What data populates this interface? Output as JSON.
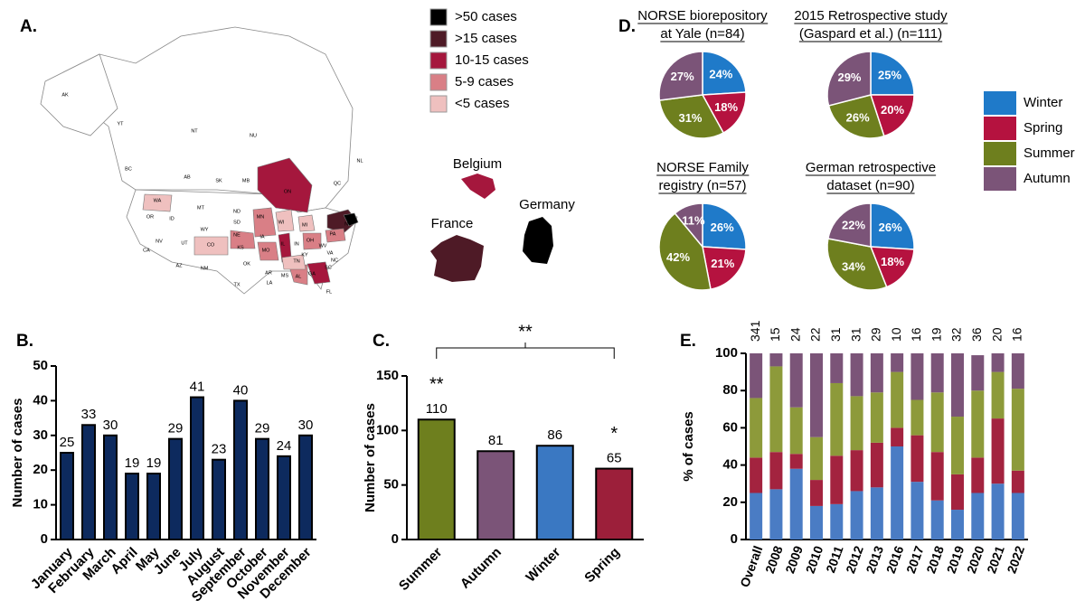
{
  "panel_labels": [
    "A.",
    "B.",
    "C.",
    "D.",
    "E."
  ],
  "chart_data": [
    {
      "type": "map",
      "legend": [
        {
          "label": ">50 cases",
          "color": "#000000"
        },
        {
          "label": ">15 cases",
          "color": "#4e1a26"
        },
        {
          "label": "10-15 cases",
          "color": "#a5173d"
        },
        {
          "label": "5-9 cases",
          "color": "#d97f86"
        },
        {
          "label": "<5 cases",
          "color": "#efc0bf"
        }
      ],
      "countries": [
        "Belgium",
        "France",
        "Germany"
      ],
      "region_labels": [
        "AK",
        "YT",
        "NT",
        "NU",
        "BC",
        "AB",
        "SK",
        "MB",
        "ON",
        "QC",
        "NL",
        "WA",
        "OR",
        "ID",
        "MT",
        "WY",
        "ND",
        "SD",
        "NE",
        "MN",
        "WI",
        "MI",
        "IA",
        "IL",
        "IN",
        "OH",
        "KS",
        "MO",
        "CA",
        "NV",
        "UT",
        "CO",
        "AZ",
        "NM",
        "TX",
        "OK",
        "AR",
        "LA",
        "MS",
        "AL",
        "GA",
        "TN",
        "KY",
        "WV",
        "VA",
        "NC",
        "SC",
        "FL",
        "PA",
        "NY"
      ]
    },
    {
      "type": "bar",
      "ylabel": "Number of cases",
      "categories": [
        "January",
        "February",
        "March",
        "April",
        "May",
        "June",
        "July",
        "August",
        "September",
        "October",
        "November",
        "December"
      ],
      "values": [
        25,
        33,
        30,
        19,
        19,
        29,
        41,
        23,
        40,
        29,
        24,
        30
      ],
      "color": "#0d2a5e",
      "ylim": [
        0,
        50
      ],
      "yticks": [
        0,
        10,
        20,
        30,
        40,
        50
      ]
    },
    {
      "type": "bar",
      "ylabel": "Number of cases",
      "categories": [
        "Summer",
        "Autumn",
        "Winter",
        "Spring"
      ],
      "values": [
        110,
        81,
        86,
        65
      ],
      "colors": [
        "#6e7f1e",
        "#7b5478",
        "#3a78c2",
        "#9c1f3a"
      ],
      "significance": [
        "**",
        null,
        null,
        "*"
      ],
      "bracket_label": "**",
      "ylim": [
        0,
        150
      ],
      "yticks": [
        0,
        50,
        100,
        150
      ]
    },
    {
      "type": "pie",
      "labels": [
        "Winter",
        "Spring",
        "Summer",
        "Autumn"
      ],
      "colors": [
        "#1f7ac9",
        "#b5123f",
        "#6e7f1e",
        "#7b5478"
      ],
      "pies": [
        {
          "title": [
            "NORSE biorepository",
            "at Yale (n=84)"
          ],
          "values": [
            24,
            18,
            31,
            27
          ],
          "value_labels": [
            "24%",
            "18%",
            "31%",
            "27%"
          ]
        },
        {
          "title": [
            "2015 Retrospective study",
            "(Gaspard et al.) (n=111)"
          ],
          "values": [
            25,
            20,
            26,
            29
          ],
          "value_labels": [
            "25%",
            "20%",
            "26%",
            "29%"
          ]
        },
        {
          "title": [
            "NORSE Family",
            "registry (n=57)"
          ],
          "values": [
            26,
            21,
            42,
            11
          ],
          "value_labels": [
            "26%",
            "21%",
            "42%",
            "11%"
          ]
        },
        {
          "title": [
            "German retrospective",
            "dataset (n=90)"
          ],
          "values": [
            26,
            18,
            34,
            22
          ],
          "value_labels": [
            "26%",
            "18%",
            "34%",
            "22%"
          ]
        }
      ]
    },
    {
      "type": "stacked_bar",
      "ylabel": "% of cases",
      "categories": [
        "Overall",
        "2008",
        "2009",
        "2010",
        "2011",
        "2012",
        "2013",
        "2016",
        "2017",
        "2018",
        "2019",
        "2020",
        "2021",
        "2022"
      ],
      "n_labels": [
        341,
        15,
        24,
        22,
        31,
        31,
        29,
        10,
        16,
        19,
        32,
        36,
        20,
        16
      ],
      "series": [
        {
          "name": "Winter",
          "color": "#4a7cc4",
          "values": [
            25,
            27,
            38,
            18,
            19,
            26,
            28,
            50,
            31,
            21,
            16,
            25,
            30,
            25
          ]
        },
        {
          "name": "Spring",
          "color": "#a3233f",
          "values": [
            19,
            20,
            8,
            14,
            26,
            22,
            24,
            10,
            25,
            26,
            19,
            19,
            35,
            12
          ]
        },
        {
          "name": "Summer",
          "color": "#8d9a3a",
          "values": [
            32,
            46,
            25,
            23,
            39,
            29,
            27,
            30,
            19,
            32,
            31,
            36,
            25,
            44
          ]
        },
        {
          "name": "Autumn",
          "color": "#7b5478",
          "values": [
            24,
            7,
            29,
            45,
            16,
            23,
            21,
            10,
            25,
            21,
            34,
            19,
            10,
            19
          ]
        }
      ],
      "ylim": [
        0,
        100
      ],
      "yticks": [
        0,
        20,
        40,
        60,
        80,
        100
      ]
    }
  ]
}
